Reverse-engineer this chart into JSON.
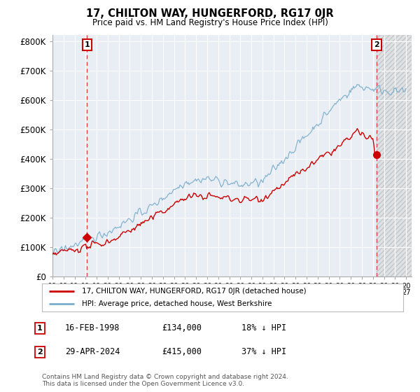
{
  "title": "17, CHILTON WAY, HUNGERFORD, RG17 0JR",
  "subtitle": "Price paid vs. HM Land Registry's House Price Index (HPI)",
  "ylim": [
    0,
    820000
  ],
  "xlim_start": 1995.0,
  "xlim_end": 2027.5,
  "sale1_date": 1998.12,
  "sale1_price": 134000,
  "sale2_date": 2024.33,
  "sale2_price": 415000,
  "sale1_label": "1",
  "sale2_label": "2",
  "legend_line1": "17, CHILTON WAY, HUNGERFORD, RG17 0JR (detached house)",
  "legend_line2": "HPI: Average price, detached house, West Berkshire",
  "footnote": "Contains HM Land Registry data © Crown copyright and database right 2024.\nThis data is licensed under the Open Government Licence v3.0.",
  "line_color_red": "#cc0000",
  "line_color_blue": "#7aadcc",
  "plot_bg_color": "#e8eef4",
  "bg_color": "#ffffff",
  "vline_color": "#dd4444",
  "grid_color": "#ffffff",
  "hatch_color": "#cccccc"
}
